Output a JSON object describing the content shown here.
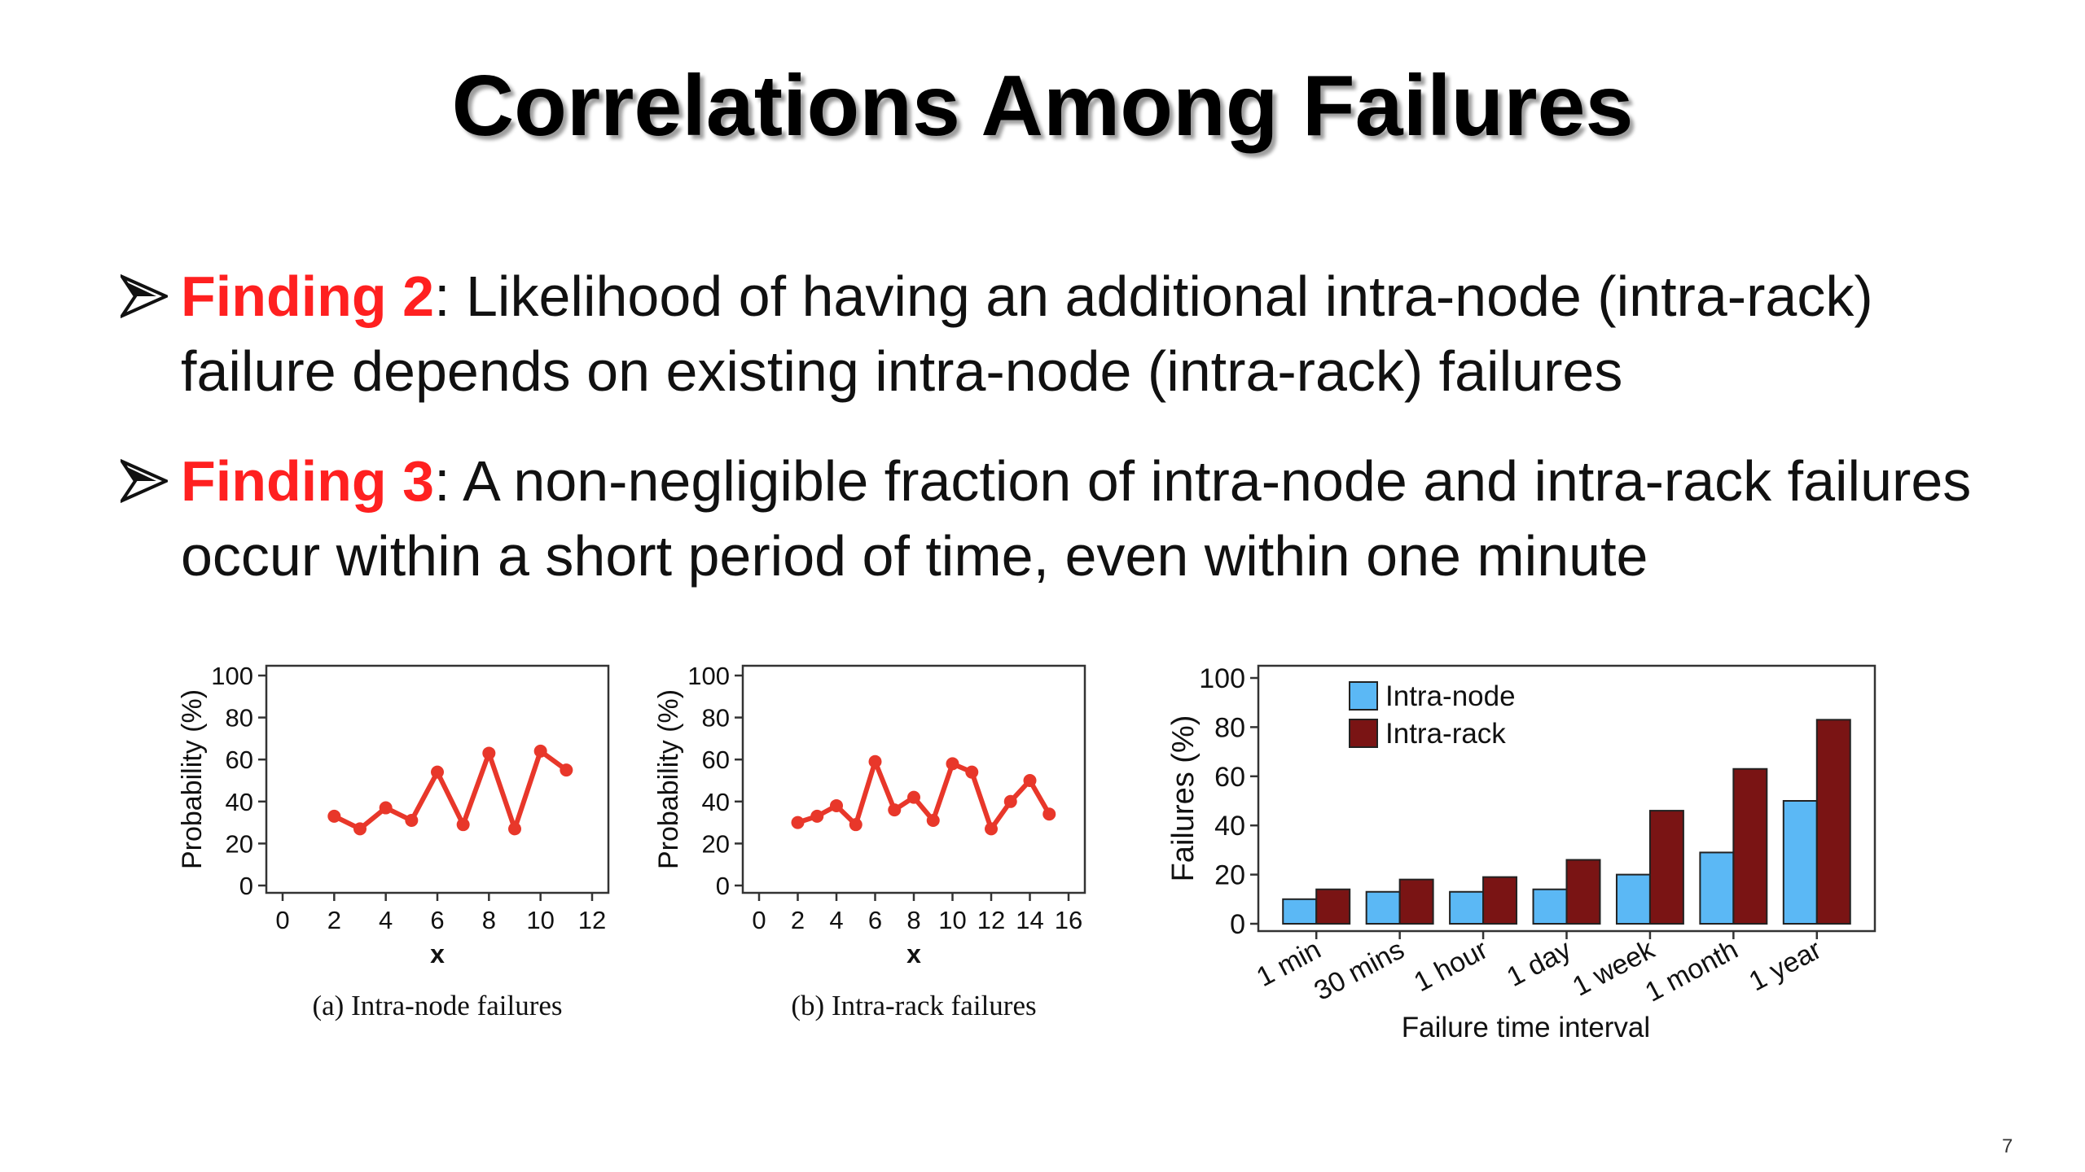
{
  "slide": {
    "title": "Correlations Among Failures",
    "page_number": "7",
    "bullets": [
      {
        "label": "Finding 2",
        "text": ": Likelihood of having an additional intra-node (intra-rack) failure depends on existing intra-node (intra-rack) failures"
      },
      {
        "label": "Finding 3",
        "text": ": A non-negligible fraction of intra-node and intra-rack failures occur within a short period of time, even within one minute"
      }
    ],
    "colors": {
      "label": "#ff2020",
      "line": "#e8372a",
      "intra_node": "#5bb8f5",
      "intra_rack": "#7a1414"
    }
  },
  "chart_data": [
    {
      "type": "line",
      "caption": "(a) Intra-node failures",
      "xlabel": "x",
      "ylabel": "Probability (%)",
      "xlim": [
        0,
        12
      ],
      "ylim": [
        0,
        100
      ],
      "xticks": [
        "0",
        "2",
        "4",
        "6",
        "8",
        "10",
        "12"
      ],
      "yticks": [
        "0",
        "20",
        "40",
        "60",
        "80",
        "100"
      ],
      "series": [
        {
          "x": [
            2,
            3,
            4,
            5,
            6,
            7,
            8,
            9,
            10,
            11
          ],
          "values": [
            33,
            27,
            37,
            31,
            54,
            29,
            63,
            27,
            64,
            55
          ]
        }
      ]
    },
    {
      "type": "line",
      "caption": "(b) Intra-rack failures",
      "xlabel": "x",
      "ylabel": "Probability (%)",
      "xlim": [
        0,
        16
      ],
      "ylim": [
        0,
        100
      ],
      "xticks": [
        "0",
        "2",
        "4",
        "6",
        "8",
        "10",
        "12",
        "14",
        "16"
      ],
      "yticks": [
        "0",
        "20",
        "40",
        "60",
        "80",
        "100"
      ],
      "series": [
        {
          "x": [
            2,
            3,
            4,
            5,
            6,
            7,
            8,
            9,
            10,
            11,
            12,
            13,
            14,
            15
          ],
          "values": [
            30,
            33,
            38,
            29,
            59,
            36,
            42,
            31,
            58,
            54,
            27,
            40,
            50,
            34
          ]
        }
      ]
    },
    {
      "type": "bar",
      "xlabel": "Failure time interval",
      "ylabel": "Failures (%)",
      "ylim": [
        0,
        100
      ],
      "yticks": [
        "0",
        "20",
        "40",
        "60",
        "80",
        "100"
      ],
      "categories": [
        "1 min",
        "30 mins",
        "1 hour",
        "1 day",
        "1 week",
        "1 month",
        "1 year"
      ],
      "legend_position": "top-left",
      "series": [
        {
          "name": "Intra-node",
          "values": [
            10,
            13,
            13,
            14,
            20,
            29,
            50
          ]
        },
        {
          "name": "Intra-rack",
          "values": [
            14,
            18,
            19,
            26,
            46,
            63,
            83
          ]
        }
      ]
    }
  ]
}
